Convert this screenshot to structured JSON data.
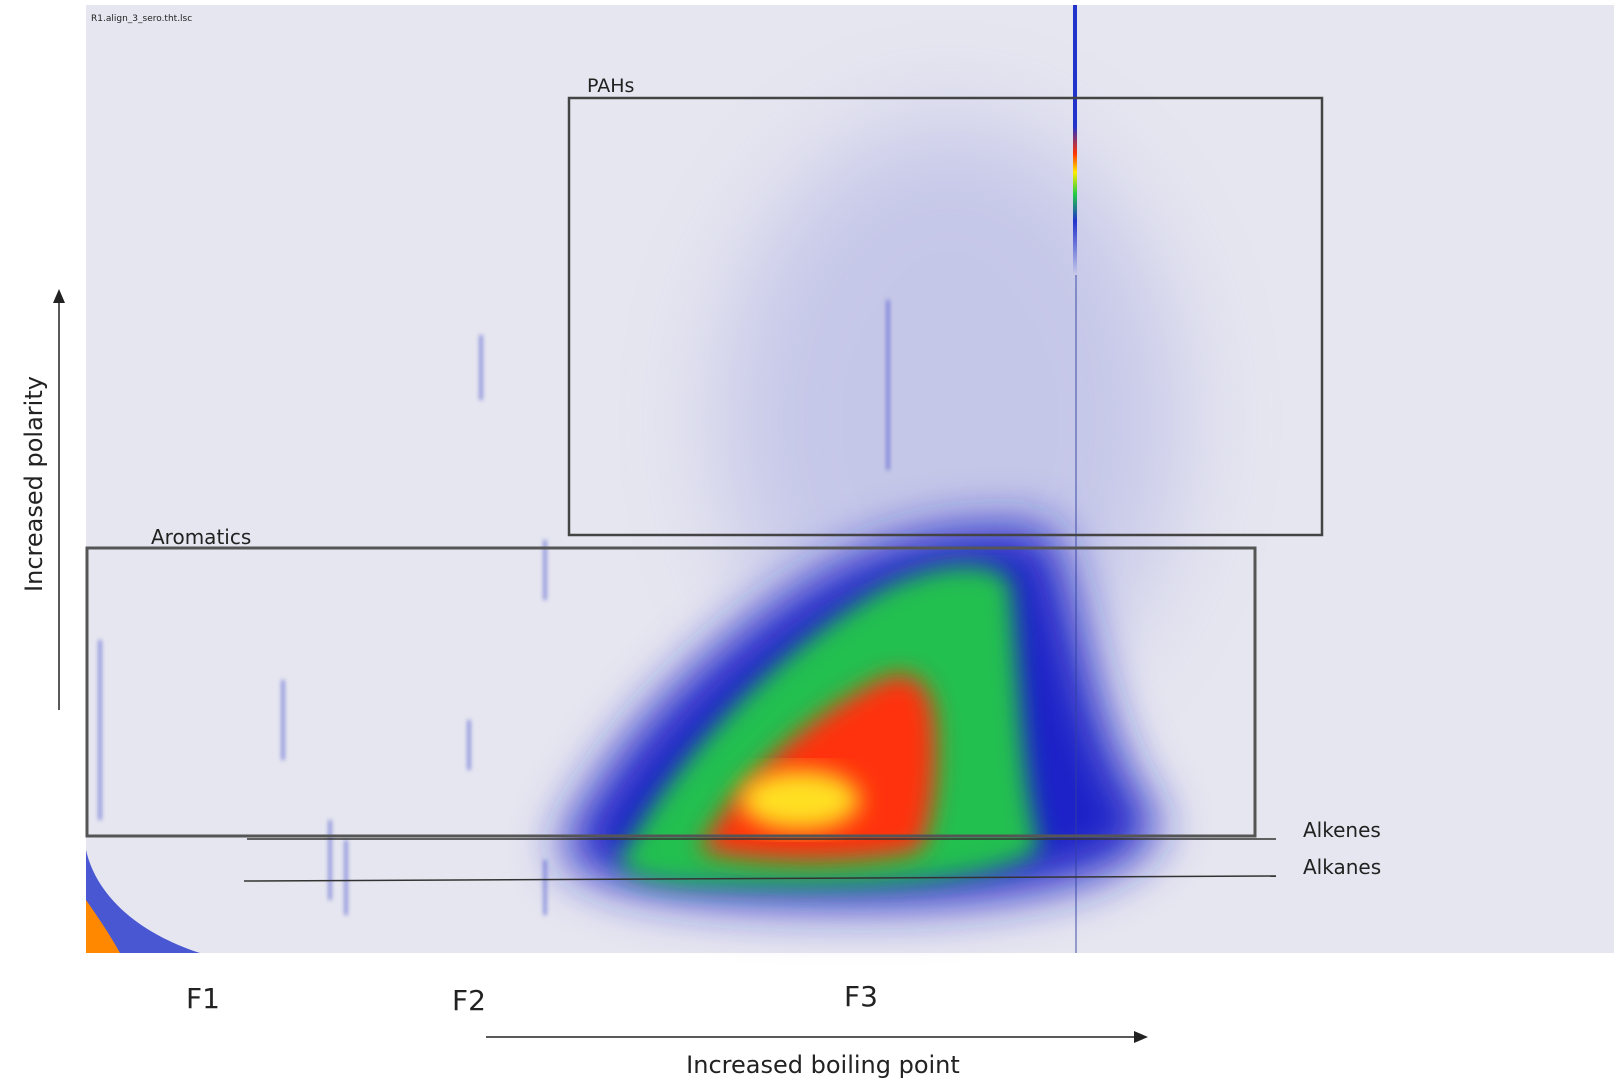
{
  "file_label": "R1.align_3_sero.tht.lsc",
  "regions": [
    {
      "label": "PAHs"
    },
    {
      "label": "Aromatics"
    }
  ],
  "lines": [
    {
      "label": "Alkenes"
    },
    {
      "label": "Alkanes"
    }
  ],
  "fractions": [
    "F1",
    "F2",
    "F3"
  ],
  "axes": {
    "x_label": "Increased boiling point",
    "y_label": "Increased polarity"
  }
}
